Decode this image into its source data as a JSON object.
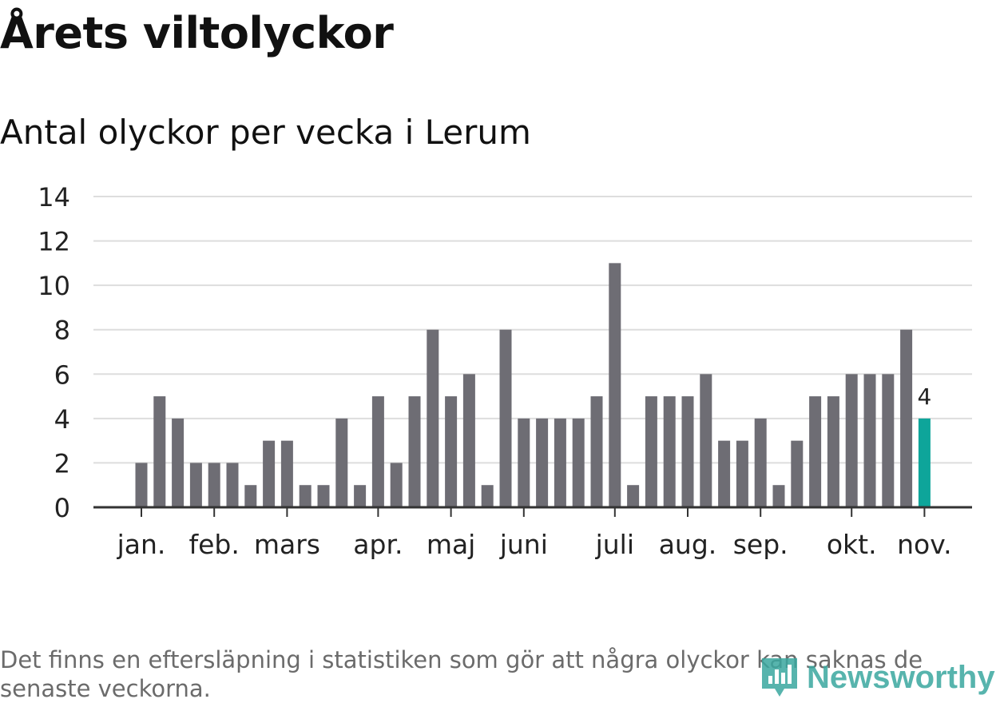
{
  "header": {
    "title": "Årets viltolyckor",
    "subtitle": "Antal olyckor per vecka i Lerum"
  },
  "chart_data": {
    "type": "bar",
    "title": "Årets viltolyckor",
    "subtitle": "Antal olyckor per vecka i Lerum",
    "xlabel": "",
    "ylabel": "",
    "ylim": [
      0,
      14
    ],
    "yticks": [
      0,
      2,
      4,
      6,
      8,
      10,
      12,
      14
    ],
    "grid": true,
    "values": [
      2,
      5,
      4,
      2,
      2,
      2,
      1,
      3,
      3,
      1,
      1,
      4,
      1,
      5,
      2,
      5,
      8,
      5,
      6,
      1,
      8,
      4,
      4,
      4,
      4,
      5,
      11,
      1,
      5,
      5,
      5,
      6,
      3,
      3,
      4,
      1,
      3,
      5,
      5,
      6,
      6,
      6,
      8,
      4
    ],
    "month_labels": [
      {
        "label": "jan.",
        "bar_index": 0
      },
      {
        "label": "feb.",
        "bar_index": 4
      },
      {
        "label": "mars",
        "bar_index": 8
      },
      {
        "label": "apr.",
        "bar_index": 13
      },
      {
        "label": "maj",
        "bar_index": 17
      },
      {
        "label": "juni",
        "bar_index": 21
      },
      {
        "label": "juli",
        "bar_index": 26
      },
      {
        "label": "aug.",
        "bar_index": 30
      },
      {
        "label": "sep.",
        "bar_index": 34
      },
      {
        "label": "okt.",
        "bar_index": 39
      },
      {
        "label": "nov.",
        "bar_index": 43
      }
    ],
    "highlight_index": 43,
    "highlight_label": "4",
    "bar_color": "#6e6d74",
    "highlight_color": "#0ea59a",
    "grid_color": "#dddddd",
    "axis_color": "#333333"
  },
  "footer": {
    "note": "Det finns en eftersläpning i statistiken som gör att några olyckor kan saknas de senaste veckorna.",
    "brand": "Newsworthy",
    "brand_icon": "newsworthy-logo-icon"
  }
}
